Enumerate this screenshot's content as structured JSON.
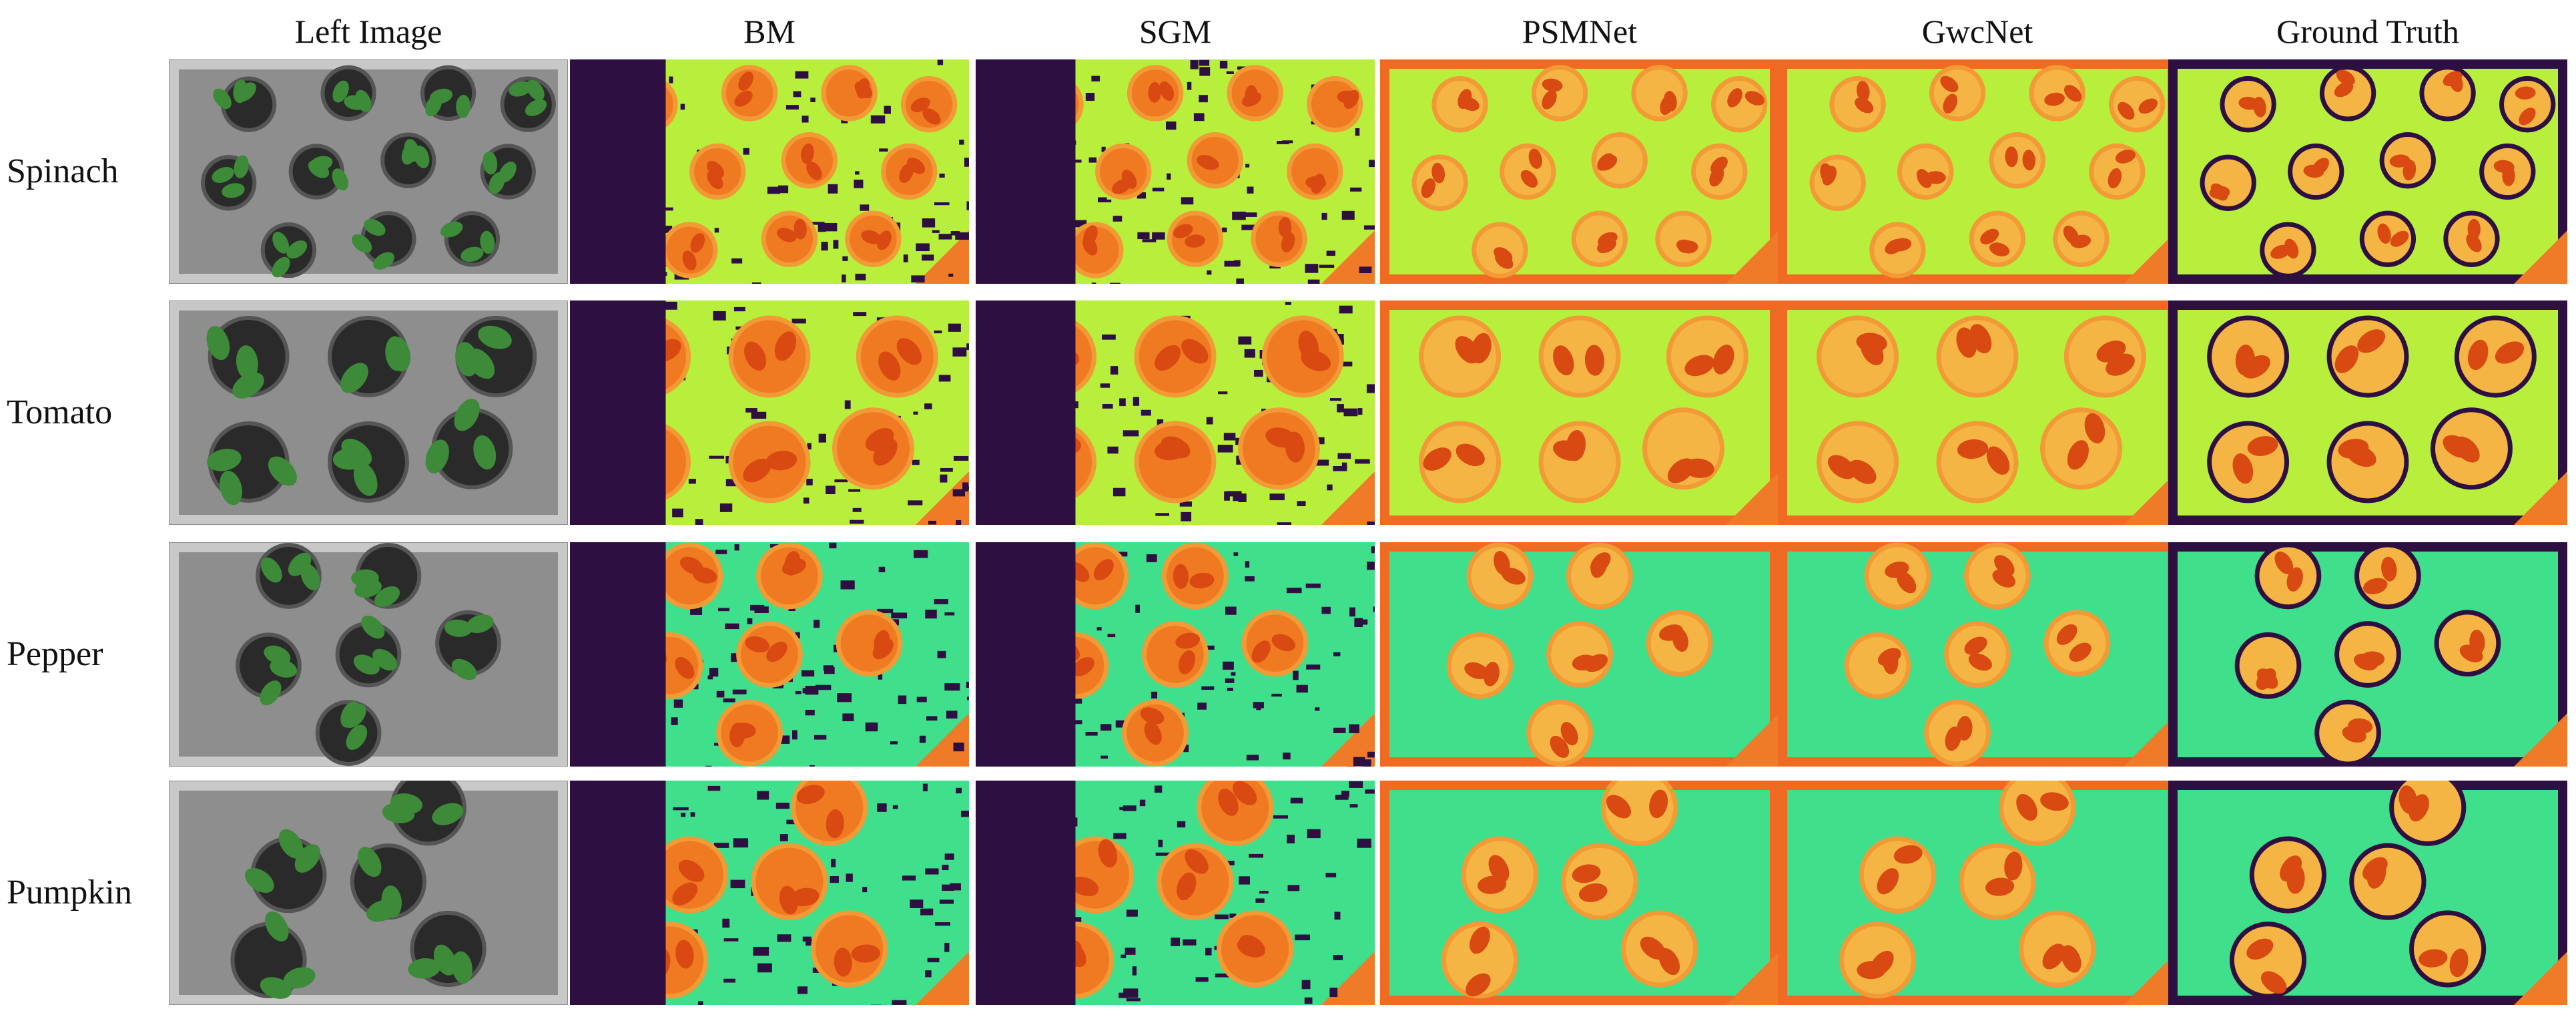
{
  "columns": [
    "Left Image",
    "BM",
    "SGM",
    "PSMNet",
    "GwcNet",
    "Ground Truth"
  ],
  "rows": [
    "Spinach",
    "Tomato",
    "Pepper",
    "Pumpkin"
  ]
}
